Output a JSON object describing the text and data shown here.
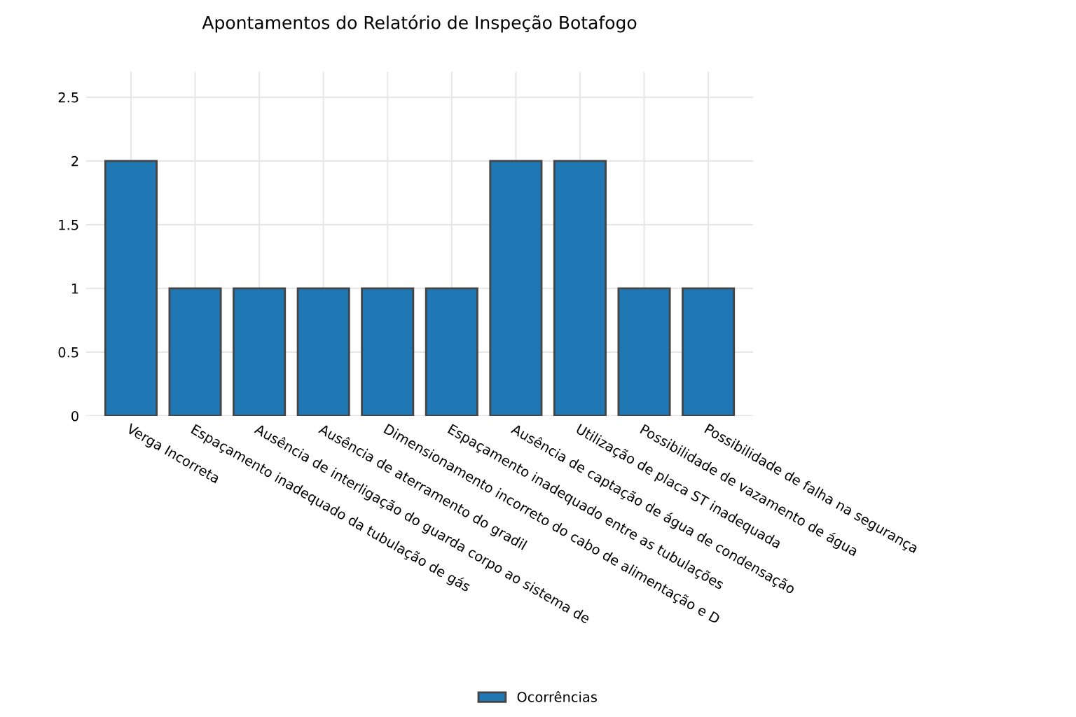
{
  "chart_data": {
    "type": "bar",
    "title": "Apontamentos do Relatório de Inspeção Botafogo",
    "categories": [
      "Verga Incorreta",
      "Espaçamento inadequado da tubulação de gás",
      "Ausência de interligação do guarda corpo ao sistema de",
      "Ausência de aterramento do gradil",
      "Dimensionamento incorreto do cabo de alimentação e D",
      "Espaçamento inadequado entre as tubulações",
      "Ausência de captação de água de condensação",
      "Utilização de placa ST inadequada",
      "Possibilidade de vazamento de água",
      "Possibilidade de falha na segurança"
    ],
    "series": [
      {
        "name": "Ocorrências",
        "color": "#1f77b4",
        "values": [
          2,
          1,
          1,
          1,
          1,
          1,
          2,
          2,
          1,
          1
        ]
      }
    ],
    "ylim": [
      0,
      2.7
    ],
    "yticks": [
      0,
      0.5,
      1,
      1.5,
      2,
      2.5
    ],
    "grid": true,
    "legend": "bottom"
  }
}
